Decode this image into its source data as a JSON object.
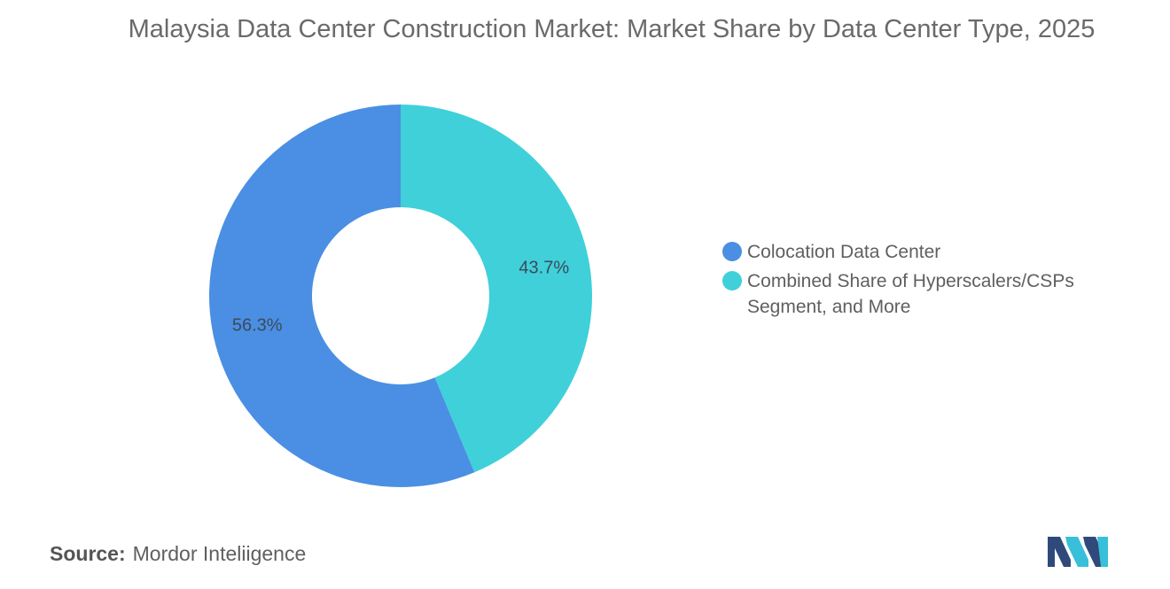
{
  "chart_data": {
    "type": "pie",
    "style": "donut",
    "title": "Malaysia Data Center Construction Market: Market Share by Data Center Type, 2025",
    "slices": [
      {
        "label": "Colocation Data Center",
        "value": 56.3,
        "display": "56.3%",
        "color": "#4a8fe3"
      },
      {
        "label": "Combined Share of Hyperscalers/CSPs Segment, and More",
        "value": 43.7,
        "display": "43.7%",
        "color": "#40d0da"
      }
    ],
    "legend_position": "right"
  },
  "source": {
    "key": "Source:",
    "value": "Mordor Inteliigence"
  },
  "logo": {
    "icon": "mordor-intelligence-logo-icon",
    "colors": [
      "#2f4a7a",
      "#38bfd9"
    ]
  }
}
